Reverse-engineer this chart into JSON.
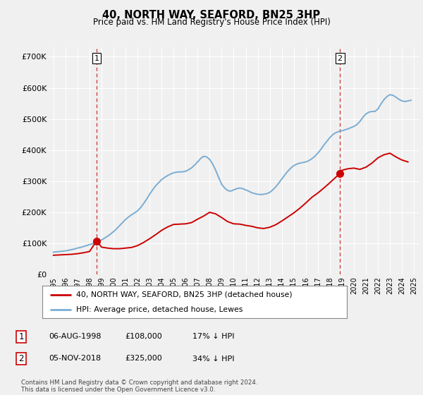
{
  "title": "40, NORTH WAY, SEAFORD, BN25 3HP",
  "subtitle": "Price paid vs. HM Land Registry's House Price Index (HPI)",
  "legend_line1": "40, NORTH WAY, SEAFORD, BN25 3HP (detached house)",
  "legend_line2": "HPI: Average price, detached house, Lewes",
  "footnote": "Contains HM Land Registry data © Crown copyright and database right 2024.\nThis data is licensed under the Open Government Licence v3.0.",
  "annotation1": {
    "label": "1",
    "date": "06-AUG-1998",
    "price": "£108,000",
    "pct": "17% ↓ HPI",
    "x_year": 1998.59
  },
  "annotation2": {
    "label": "2",
    "date": "05-NOV-2018",
    "price": "£325,000",
    "pct": "34% ↓ HPI",
    "x_year": 2018.84
  },
  "red_line_color": "#cc0000",
  "blue_line_color": "#7aadd4",
  "point_color": "#cc0000",
  "dashed_line_color": "#cc3333",
  "background_color": "#f0f0f0",
  "plot_bg_color": "#f0f0f0",
  "grid_color": "#ffffff",
  "ylim": [
    0,
    730000
  ],
  "yticks": [
    0,
    100000,
    200000,
    300000,
    400000,
    500000,
    600000,
    700000
  ],
  "ytick_labels": [
    "£0",
    "£100K",
    "£200K",
    "£300K",
    "£400K",
    "£500K",
    "£600K",
    "£700K"
  ],
  "xlim_min": 1994.6,
  "xlim_max": 2025.4,
  "hpi_x": [
    1995.0,
    1995.25,
    1995.5,
    1995.75,
    1996.0,
    1996.25,
    1996.5,
    1996.75,
    1997.0,
    1997.25,
    1997.5,
    1997.75,
    1998.0,
    1998.25,
    1998.5,
    1998.75,
    1999.0,
    1999.25,
    1999.5,
    1999.75,
    2000.0,
    2000.25,
    2000.5,
    2000.75,
    2001.0,
    2001.25,
    2001.5,
    2001.75,
    2002.0,
    2002.25,
    2002.5,
    2002.75,
    2003.0,
    2003.25,
    2003.5,
    2003.75,
    2004.0,
    2004.25,
    2004.5,
    2004.75,
    2005.0,
    2005.25,
    2005.5,
    2005.75,
    2006.0,
    2006.25,
    2006.5,
    2006.75,
    2007.0,
    2007.25,
    2007.5,
    2007.75,
    2008.0,
    2008.25,
    2008.5,
    2008.75,
    2009.0,
    2009.25,
    2009.5,
    2009.75,
    2010.0,
    2010.25,
    2010.5,
    2010.75,
    2011.0,
    2011.25,
    2011.5,
    2011.75,
    2012.0,
    2012.25,
    2012.5,
    2012.75,
    2013.0,
    2013.25,
    2013.5,
    2013.75,
    2014.0,
    2014.25,
    2014.5,
    2014.75,
    2015.0,
    2015.25,
    2015.5,
    2015.75,
    2016.0,
    2016.25,
    2016.5,
    2016.75,
    2017.0,
    2017.25,
    2017.5,
    2017.75,
    2018.0,
    2018.25,
    2018.5,
    2018.75,
    2019.0,
    2019.25,
    2019.5,
    2019.75,
    2020.0,
    2020.25,
    2020.5,
    2020.75,
    2021.0,
    2021.25,
    2021.5,
    2021.75,
    2022.0,
    2022.25,
    2022.5,
    2022.75,
    2023.0,
    2023.25,
    2023.5,
    2023.75,
    2024.0,
    2024.25,
    2024.5,
    2024.75
  ],
  "hpi_y": [
    72000,
    73000,
    74000,
    75000,
    76000,
    78000,
    80000,
    82000,
    85000,
    87000,
    90000,
    93000,
    96000,
    99000,
    102000,
    106000,
    111000,
    117000,
    123000,
    130000,
    138000,
    147000,
    157000,
    167000,
    177000,
    185000,
    192000,
    198000,
    205000,
    215000,
    228000,
    242000,
    258000,
    272000,
    285000,
    295000,
    305000,
    312000,
    318000,
    323000,
    327000,
    329000,
    330000,
    330000,
    332000,
    337000,
    343000,
    352000,
    362000,
    373000,
    380000,
    378000,
    370000,
    355000,
    335000,
    312000,
    290000,
    278000,
    270000,
    268000,
    272000,
    276000,
    278000,
    276000,
    272000,
    268000,
    263000,
    260000,
    258000,
    257000,
    258000,
    260000,
    264000,
    272000,
    282000,
    294000,
    307000,
    320000,
    332000,
    342000,
    350000,
    355000,
    358000,
    360000,
    362000,
    366000,
    372000,
    380000,
    390000,
    402000,
    416000,
    428000,
    440000,
    450000,
    456000,
    460000,
    462000,
    465000,
    468000,
    472000,
    476000,
    482000,
    492000,
    505000,
    516000,
    522000,
    524000,
    524000,
    532000,
    548000,
    562000,
    572000,
    578000,
    576000,
    570000,
    563000,
    558000,
    556000,
    558000,
    560000
  ],
  "red_x": [
    1995.0,
    1995.5,
    1996.0,
    1996.5,
    1997.0,
    1997.5,
    1998.0,
    1998.59,
    1999.0,
    1999.5,
    2000.0,
    2000.5,
    2001.0,
    2001.5,
    2002.0,
    2002.5,
    2003.0,
    2003.5,
    2004.0,
    2004.5,
    2005.0,
    2005.5,
    2006.0,
    2006.5,
    2007.0,
    2007.5,
    2008.0,
    2008.5,
    2009.0,
    2009.5,
    2010.0,
    2010.5,
    2011.0,
    2011.5,
    2012.0,
    2012.5,
    2013.0,
    2013.5,
    2014.0,
    2014.5,
    2015.0,
    2015.5,
    2016.0,
    2016.5,
    2017.0,
    2017.5,
    2018.0,
    2018.84,
    2019.0,
    2019.5,
    2020.0,
    2020.5,
    2021.0,
    2021.5,
    2022.0,
    2022.5,
    2023.0,
    2023.5,
    2024.0,
    2024.5
  ],
  "red_y": [
    62000,
    63000,
    64000,
    65000,
    67000,
    70000,
    74000,
    108000,
    88000,
    85000,
    83000,
    83000,
    85000,
    87000,
    93000,
    103000,
    115000,
    128000,
    142000,
    153000,
    161000,
    162000,
    163000,
    167000,
    178000,
    188000,
    200000,
    195000,
    183000,
    170000,
    163000,
    162000,
    158000,
    155000,
    150000,
    148000,
    152000,
    160000,
    172000,
    185000,
    198000,
    213000,
    230000,
    248000,
    262000,
    278000,
    295000,
    325000,
    335000,
    340000,
    342000,
    338000,
    345000,
    358000,
    375000,
    385000,
    390000,
    378000,
    368000,
    362000
  ]
}
